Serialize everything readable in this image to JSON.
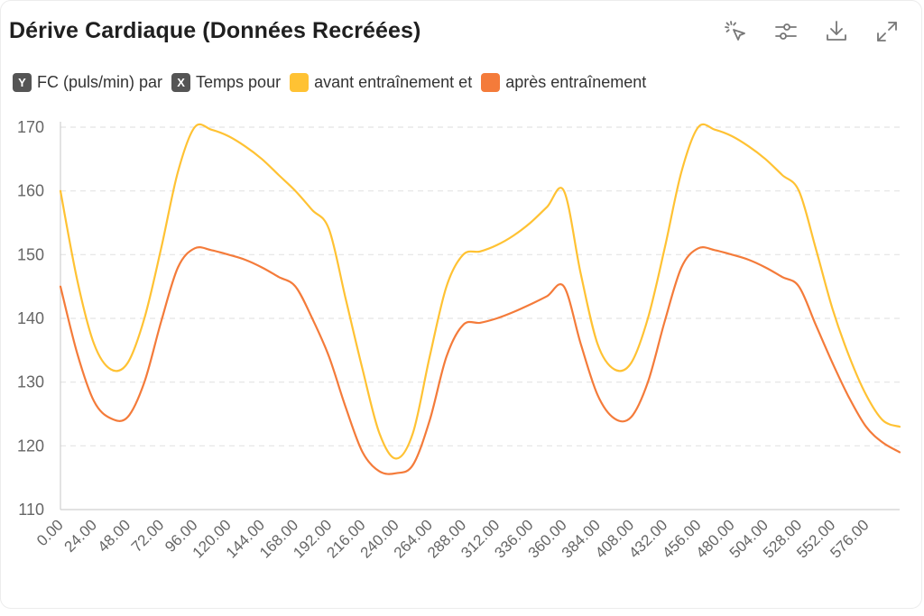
{
  "title": "Dérive Cardiaque (Données Recréées)",
  "toolbar": {
    "icons": [
      "select-pointer-icon",
      "sliders-icon",
      "download-icon",
      "expand-icon"
    ]
  },
  "legend": {
    "y_key": "Y",
    "y_text": "FC (puls/min) par",
    "x_key": "X",
    "x_text": "Temps pour",
    "series1_text": "avant entraînement et",
    "series2_text": "après entraînement"
  },
  "colors": {
    "series1": "#ffc233",
    "series2": "#f47b3a",
    "grid": "#e4e4e4",
    "axis": "#d0d0d0"
  },
  "chart_data": {
    "type": "line",
    "title": "Dérive Cardiaque (Données Recréées)",
    "xlabel": "",
    "ylabel": "",
    "ylim": [
      110,
      170
    ],
    "yticks": [
      110,
      120,
      130,
      140,
      150,
      160,
      170
    ],
    "xlim": [
      0,
      600
    ],
    "xticks": [
      "0.00",
      "24.00",
      "48.00",
      "72.00",
      "96.00",
      "120.00",
      "144.00",
      "168.00",
      "192.00",
      "216.00",
      "240.00",
      "264.00",
      "288.00",
      "312.00",
      "336.00",
      "360.00",
      "384.00",
      "408.00",
      "432.00",
      "456.00",
      "480.00",
      "504.00",
      "528.00",
      "552.00",
      "576.00"
    ],
    "grid": true,
    "legend_position": "top-left",
    "series": [
      {
        "name": "avant entraînement",
        "x": [
          0,
          12,
          24,
          36,
          48,
          60,
          72,
          84,
          96,
          108,
          120,
          132,
          144,
          156,
          168,
          180,
          192,
          204,
          216,
          228,
          240,
          252,
          264,
          276,
          288,
          300,
          312,
          324,
          336,
          348,
          360,
          372,
          384,
          396,
          408,
          420,
          432,
          444,
          456,
          468,
          480,
          492,
          504,
          516,
          528,
          540,
          552,
          564,
          576,
          588,
          600
        ],
        "values": [
          160,
          146,
          136,
          132,
          133,
          140,
          151,
          163,
          170,
          169.6,
          168.6,
          167,
          165,
          162.5,
          160,
          157,
          154,
          143,
          132,
          122,
          118,
          122,
          134,
          145,
          150,
          150.5,
          151.5,
          153,
          155,
          157.5,
          160,
          147,
          136,
          132,
          133,
          140,
          151,
          163,
          170,
          169.6,
          168.6,
          167,
          165,
          162.5,
          160,
          151,
          141.5,
          134,
          128,
          124,
          123
        ]
      },
      {
        "name": "après entraînement",
        "x": [
          0,
          12,
          24,
          36,
          48,
          60,
          72,
          84,
          96,
          108,
          120,
          132,
          144,
          156,
          168,
          180,
          192,
          204,
          216,
          228,
          240,
          252,
          264,
          276,
          288,
          300,
          312,
          324,
          336,
          348,
          360,
          372,
          384,
          396,
          408,
          420,
          432,
          444,
          456,
          468,
          480,
          492,
          504,
          516,
          528,
          540,
          552,
          564,
          576,
          588,
          600
        ],
        "values": [
          145,
          134.5,
          127,
          124.3,
          124.5,
          130,
          139.5,
          148,
          151,
          150.7,
          150,
          149.2,
          148,
          146.5,
          145,
          140,
          134,
          126,
          119,
          116,
          115.7,
          117,
          124,
          134,
          139,
          139.3,
          140,
          141,
          142.2,
          143.5,
          145,
          136,
          128,
          124.3,
          124.5,
          130,
          139.5,
          148,
          151,
          150.7,
          150,
          149.2,
          148,
          146.5,
          145,
          139,
          133,
          127.5,
          123,
          120.5,
          119
        ]
      }
    ]
  }
}
